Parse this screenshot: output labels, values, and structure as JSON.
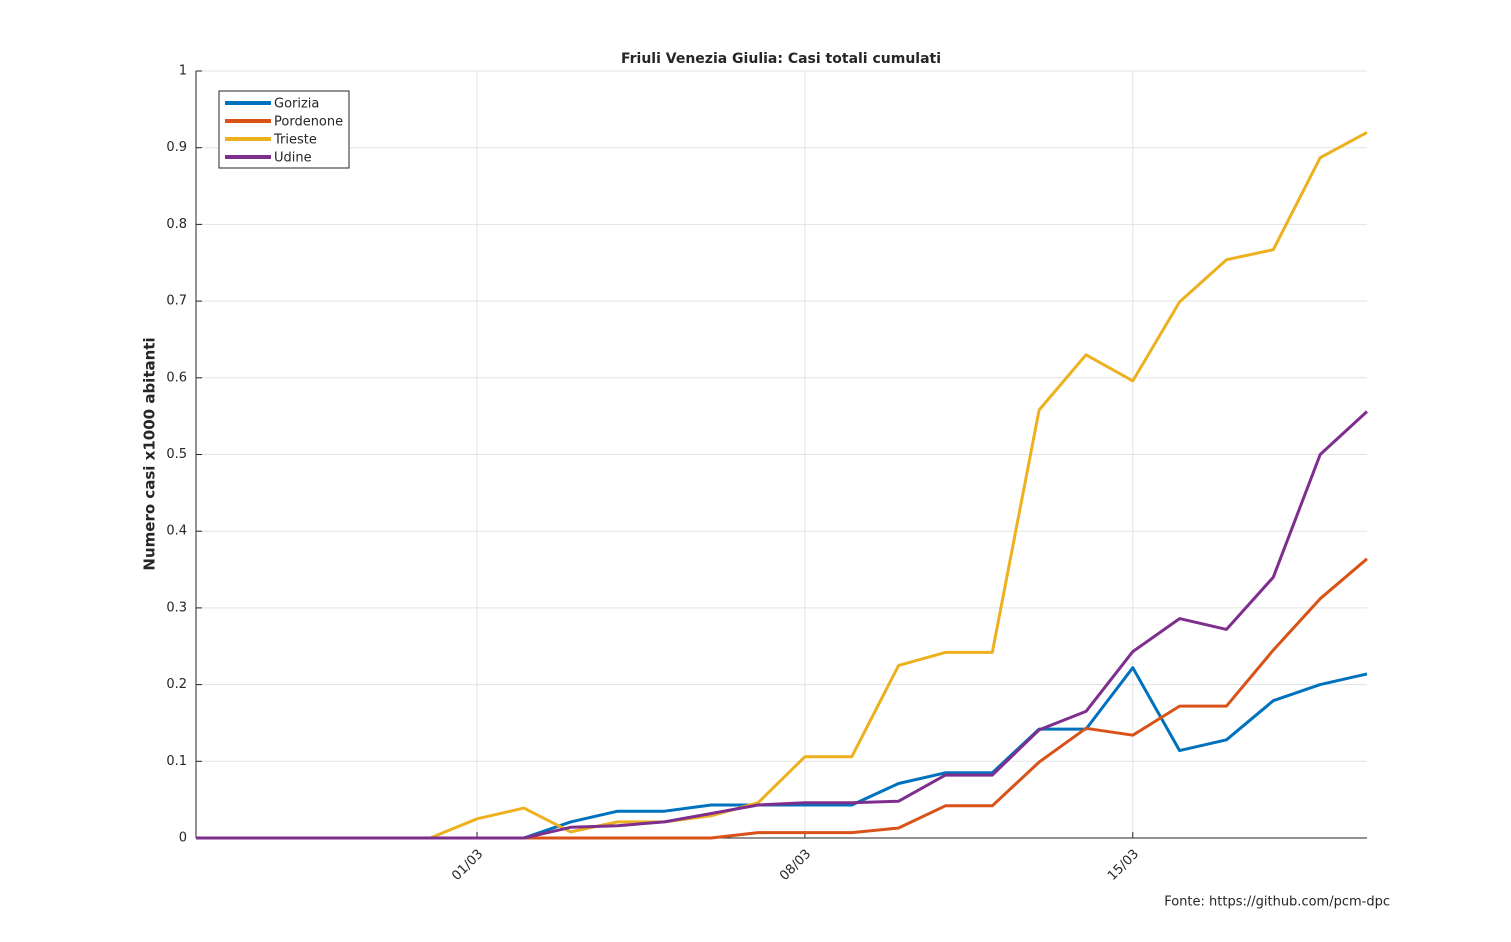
{
  "chart_data": {
    "type": "line",
    "title": "Friuli Venezia Giulia: Casi totali cumulati",
    "ylabel": "Numero casi x1000 abitanti",
    "note": "Fonte: https://github.com/pcm-dpc",
    "categories": [
      null,
      null,
      null,
      null,
      null,
      null,
      "01/03",
      null,
      null,
      null,
      null,
      null,
      null,
      "08/03",
      null,
      null,
      null,
      null,
      null,
      null,
      "15/03",
      null,
      null,
      null,
      null,
      null
    ],
    "series": [
      {
        "name": "Gorizia",
        "color": "#0072BD",
        "values": [
          0,
          0,
          0,
          0,
          0,
          0,
          0,
          0,
          0.021,
          0.035,
          0.035,
          0.043,
          0.043,
          0.043,
          0.043,
          0.071,
          0.085,
          0.085,
          0.142,
          0.142,
          0.222,
          0.114,
          0.128,
          0.179,
          0.2,
          0.214
        ]
      },
      {
        "name": "Pordenone",
        "color": "#D95319",
        "values": [
          0,
          0,
          0,
          0,
          0,
          0,
          0,
          0,
          0,
          0,
          0,
          0,
          0.007,
          0.007,
          0.007,
          0.013,
          0.042,
          0.042,
          0.099,
          0.143,
          0.134,
          0.172,
          0.172,
          0.245,
          0.312,
          0.364
        ]
      },
      {
        "name": "Trieste",
        "color": "#EDB120",
        "values": [
          0,
          0,
          0,
          0,
          0,
          0,
          0.025,
          0.039,
          0.008,
          0.021,
          0.021,
          0.029,
          0.046,
          0.106,
          0.106,
          0.225,
          0.242,
          0.242,
          0.558,
          0.63,
          0.596,
          0.699,
          0.754,
          0.767,
          0.887,
          0.92
        ]
      },
      {
        "name": "Udine",
        "color": "#7E2F8E",
        "values": [
          0,
          0,
          0,
          0,
          0,
          0,
          0,
          0,
          0.014,
          0.016,
          0.021,
          0.032,
          0.043,
          0.046,
          0.046,
          0.048,
          0.082,
          0.082,
          0.141,
          0.165,
          0.243,
          0.286,
          0.272,
          0.34,
          0.5,
          0.556
        ]
      }
    ],
    "ylim": [
      0,
      1
    ],
    "yticks": [
      0,
      0.1,
      0.2,
      0.3,
      0.4,
      0.5,
      0.6,
      0.7,
      0.8,
      0.9,
      1
    ],
    "grid": true,
    "legend": "northwest"
  }
}
